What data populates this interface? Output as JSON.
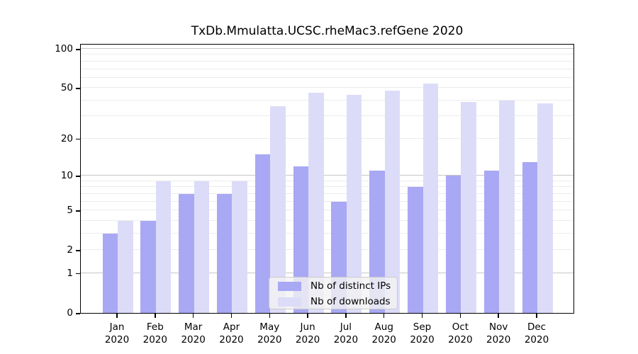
{
  "title": "TxDb.Mmulatta.UCSC.rheMac3.refGene 2020",
  "chart_data": {
    "type": "bar",
    "title": "TxDb.Mmulatta.UCSC.rheMac3.refGene 2020",
    "y_scale": "log1p",
    "categories": [
      "Jan",
      "Feb",
      "Mar",
      "Apr",
      "May",
      "Jun",
      "Jul",
      "Aug",
      "Sep",
      "Oct",
      "Nov",
      "Dec"
    ],
    "xtick_year": "2020",
    "series": [
      {
        "name": "Nb of distinct IPs",
        "color": "#a8a8f4",
        "values": [
          3,
          4,
          7,
          7,
          15,
          12,
          6,
          11,
          8,
          10,
          11,
          13
        ]
      },
      {
        "name": "Nb of downloads",
        "color": "#dcdcf9",
        "values": [
          4,
          9,
          9,
          9,
          36,
          46,
          44,
          48,
          54,
          39,
          40,
          38
        ]
      }
    ],
    "yticks": [
      0,
      1,
      2,
      5,
      10,
      20,
      50,
      100
    ],
    "ylim": [
      0,
      110
    ],
    "grid_minor": [
      2,
      3,
      4,
      5,
      6,
      7,
      8,
      9,
      20,
      30,
      40,
      50,
      60,
      70,
      80,
      90
    ],
    "grid_major": [
      1,
      10,
      100
    ],
    "legend_position": "inside-bottom-center",
    "colors": {
      "axis": "#000000",
      "grid_minor": "#ececec",
      "grid_major": "#c6c6c6",
      "background": "#ffffff"
    }
  }
}
